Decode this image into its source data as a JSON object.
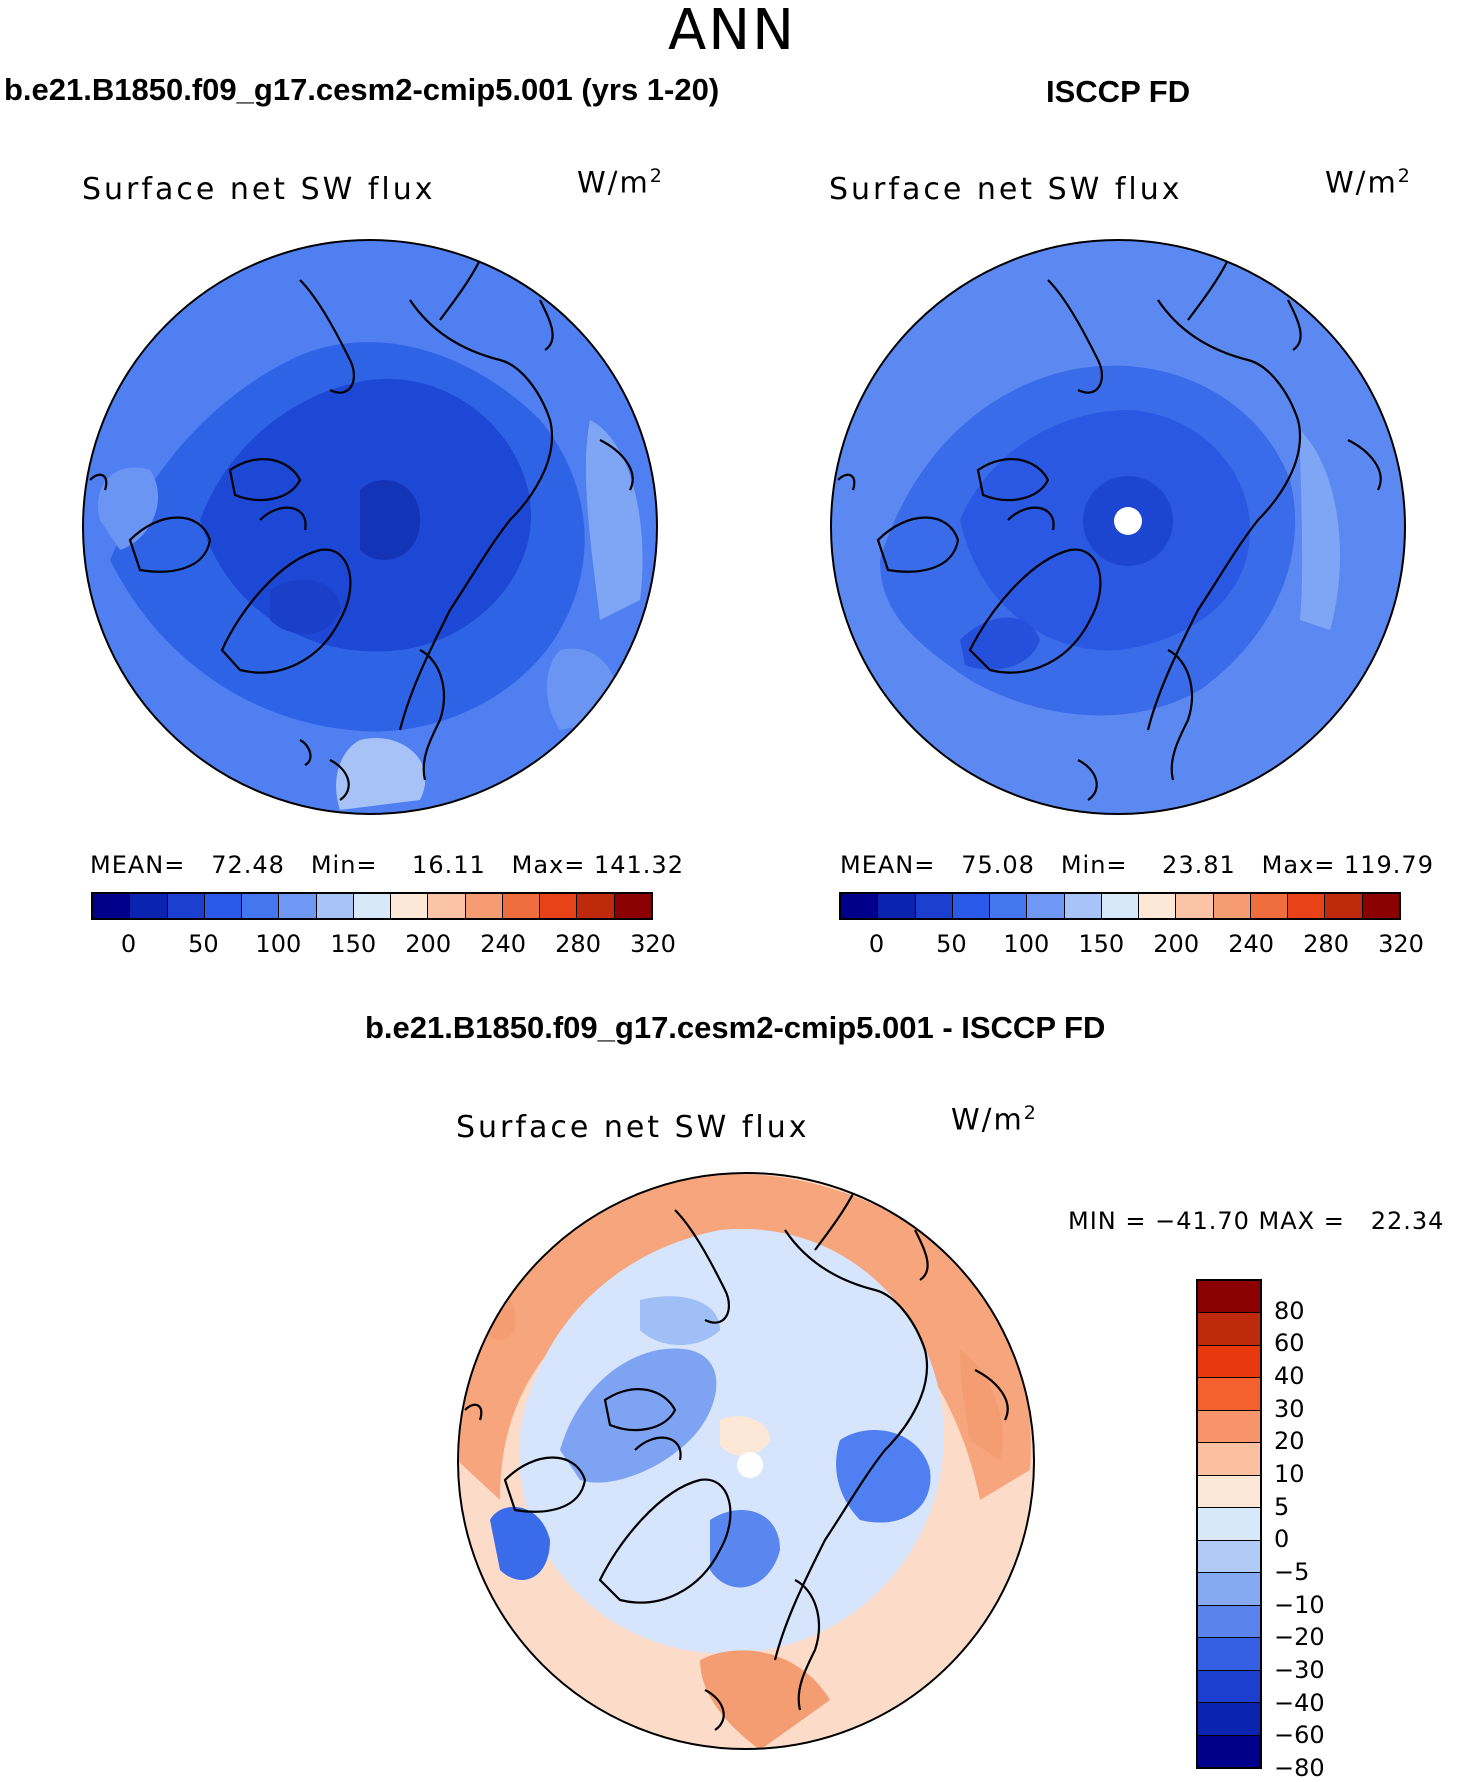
{
  "season": "ANN",
  "panels": {
    "left": {
      "title": "b.e21.B1850.f09_g17.cesm2-cmip5.001 (yrs 1-20)",
      "variable": "Surface net SW flux",
      "unit_base": "W/m",
      "unit_sup": "2",
      "stats": "MEAN=   72.48   Min=    16.11   Max= 141.32"
    },
    "right": {
      "title": "ISCCP FD",
      "variable": "Surface net SW flux",
      "unit_base": "W/m",
      "unit_sup": "2",
      "stats": "MEAN=   75.08   Min=    23.81   Max= 119.79"
    },
    "diff": {
      "title": "b.e21.B1850.f09_g17.cesm2-cmip5.001 - ISCCP FD",
      "variable": "Surface net SW flux",
      "unit_base": "W/m",
      "unit_sup": "2",
      "stats": "MIN = −41.70 MAX =   22.34"
    }
  },
  "abs_colorbar": {
    "colors": [
      "#00008b",
      "#0a24b0",
      "#1c3fd0",
      "#2c5ae8",
      "#4476f0",
      "#6f98f5",
      "#a7c3f7",
      "#d8e8fb",
      "#fde8d8",
      "#fbc4a6",
      "#f59c72",
      "#f06d3e",
      "#e84218",
      "#c02a0c",
      "#8b0000"
    ],
    "labels": [
      "0",
      "50",
      "100",
      "150",
      "200",
      "240",
      "280",
      "320"
    ]
  },
  "diff_colorbar": {
    "colors": [
      "#8b0000",
      "#c02a0c",
      "#e8380e",
      "#f4602e",
      "#f8946a",
      "#fbc0a0",
      "#fde8d8",
      "#d8e8fb",
      "#b0cbf6",
      "#86aaf2",
      "#5a83ec",
      "#3560e4",
      "#1c3fd0",
      "#0a24b0",
      "#00008b"
    ],
    "labels": [
      "80",
      "60",
      "40",
      "30",
      "20",
      "10",
      "5",
      "0",
      "−5",
      "−10",
      "−20",
      "−30",
      "−40",
      "−60",
      "−80"
    ]
  }
}
